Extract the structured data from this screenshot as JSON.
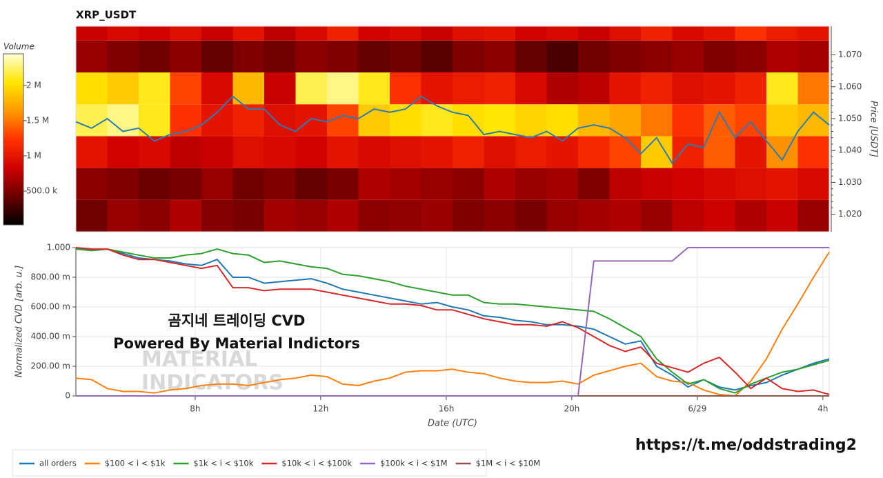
{
  "chart_data": [
    {
      "type": "heatmap",
      "title": "XRP_USDT",
      "xlim": [
        4.2,
        28.2
      ],
      "xbins": [
        4.2,
        5.2,
        6.2,
        7.2,
        8.2,
        9.2,
        10.2,
        11.2,
        12.2,
        13.2,
        14.2,
        15.2,
        16.2,
        17.2,
        18.2,
        19.2,
        20.2,
        21.2,
        22.2,
        23.2,
        24.2,
        25.2,
        26.2,
        27.2,
        28.2
      ],
      "ybins": [
        1.0145,
        1.0245,
        1.0345,
        1.0445,
        1.0545,
        1.0645,
        1.0745,
        1.079
      ],
      "z": [
        [
          450000,
          600000,
          550000,
          700000,
          520000,
          480000,
          650000,
          600000,
          700000,
          550000,
          580000,
          620000,
          500000,
          550000,
          480000,
          600000,
          650000,
          700000,
          600000,
          750000,
          820000,
          700000,
          800000,
          600000
        ],
        [
          550000,
          500000,
          420000,
          480000,
          600000,
          450000,
          500000,
          400000,
          480000,
          700000,
          650000,
          600000,
          550000,
          700000,
          600000,
          650000,
          500000,
          750000,
          800000,
          850000,
          900000,
          950000,
          1000000,
          900000
        ],
        [
          1000000,
          850000,
          900000,
          750000,
          800000,
          950000,
          900000,
          850000,
          1000000,
          900000,
          950000,
          1000000,
          1100000,
          950000,
          1050000,
          1000000,
          1150000,
          1300000,
          1900000,
          1100000,
          1400000,
          1000000,
          1600000,
          1200000
        ],
        [
          2200000,
          2300000,
          2100000,
          1200000,
          1000000,
          1100000,
          950000,
          1000000,
          1300000,
          1900000,
          2000000,
          2100000,
          2000000,
          2050000,
          1950000,
          2000000,
          1800000,
          1700000,
          1500000,
          1200000,
          1400000,
          1300000,
          1900000,
          1800000
        ],
        [
          2000000,
          1900000,
          2100000,
          1300000,
          900000,
          1800000,
          800000,
          2200000,
          2300000,
          2100000,
          1200000,
          1000000,
          1050000,
          1100000,
          900000,
          700000,
          750000,
          1000000,
          1100000,
          950000,
          1000000,
          1100000,
          2100000,
          1500000
        ],
        [
          600000,
          500000,
          450000,
          550000,
          400000,
          500000,
          450000,
          550000,
          500000,
          400000,
          450000,
          350000,
          500000,
          550000,
          400000,
          300000,
          450000,
          500000,
          550000,
          600000,
          500000,
          550000,
          700000,
          650000
        ],
        [
          800000,
          900000,
          850000,
          950000,
          800000,
          1000000,
          750000,
          900000,
          1100000,
          850000,
          900000,
          800000,
          950000,
          1000000,
          850000,
          900000,
          800000,
          950000,
          1100000,
          900000,
          1000000,
          1200000,
          1050000,
          1000000
        ]
      ],
      "colorbar": {
        "title": "Volume",
        "lim": [
          20000,
          2450000
        ],
        "ticks": [
          {
            "value": 500000,
            "label": "500.0 k"
          },
          {
            "value": 1000000,
            "label": "1 M"
          },
          {
            "value": 1500000,
            "label": "1.5 M"
          },
          {
            "value": 2000000,
            "label": "2 M"
          }
        ],
        "colorscale": [
          "#000000",
          "#6b0000",
          "#cf0000",
          "#ff3300",
          "#ff9a00",
          "#ffe600",
          "#ffffd4"
        ]
      },
      "ylabel": "Price [USDT]",
      "yaxis_side": "right",
      "ylim": [
        1.0145,
        1.079
      ],
      "yticks": [
        {
          "value": 1.02,
          "label": "1.020"
        },
        {
          "value": 1.03,
          "label": "1.030"
        },
        {
          "value": 1.04,
          "label": "1.040"
        },
        {
          "value": 1.05,
          "label": "1.050"
        },
        {
          "value": 1.06,
          "label": "1.060"
        },
        {
          "value": 1.07,
          "label": "1.070"
        }
      ],
      "line": {
        "color": "#2e7bb0",
        "x": [
          4.2,
          4.7,
          5.2,
          5.7,
          6.2,
          6.7,
          7.2,
          7.7,
          8.2,
          8.7,
          9.2,
          9.7,
          10.2,
          10.7,
          11.2,
          11.7,
          12.2,
          12.7,
          13.2,
          13.7,
          14.2,
          14.7,
          15.2,
          15.7,
          16.2,
          16.7,
          17.2,
          17.7,
          18.2,
          18.7,
          19.2,
          19.7,
          20.2,
          20.7,
          21.2,
          21.7,
          22.2,
          22.7,
          23.2,
          23.7,
          24.2,
          24.7,
          25.2,
          25.7,
          26.2,
          26.7,
          27.2,
          27.7,
          28.2
        ],
        "values": [
          1.049,
          1.047,
          1.05,
          1.046,
          1.047,
          1.043,
          1.045,
          1.046,
          1.048,
          1.052,
          1.057,
          1.053,
          1.053,
          1.048,
          1.046,
          1.05,
          1.049,
          1.051,
          1.05,
          1.053,
          1.052,
          1.053,
          1.057,
          1.054,
          1.052,
          1.051,
          1.045,
          1.046,
          1.045,
          1.044,
          1.046,
          1.043,
          1.047,
          1.048,
          1.047,
          1.044,
          1.039,
          1.044,
          1.036,
          1.042,
          1.041,
          1.052,
          1.044,
          1.049,
          1.043,
          1.037,
          1.046,
          1.052,
          1.048
        ]
      }
    },
    {
      "type": "line",
      "xlabel": "Date (UTC)",
      "ylabel": "Normalized CVD [arb. u.]",
      "grid": true,
      "xlim": [
        4.2,
        28.2
      ],
      "xticks": [
        {
          "value": 8,
          "label": "8h"
        },
        {
          "value": 12,
          "label": "12h"
        },
        {
          "value": 16,
          "label": "16h"
        },
        {
          "value": 20,
          "label": "20h"
        },
        {
          "value": 24,
          "label": "6/29"
        },
        {
          "value": 28,
          "label": "4h"
        }
      ],
      "ylim": [
        0,
        1
      ],
      "yticks": [
        0,
        {
          "value": 0.2,
          "label": "200.00 m"
        },
        {
          "value": 0.4,
          "label": "400.00 m"
        },
        {
          "value": 0.6,
          "label": "600.00 m"
        },
        {
          "value": 0.8,
          "label": "800.00 m"
        },
        {
          "value": 1,
          "label": "1.000"
        }
      ],
      "x": [
        4.2,
        4.7,
        5.2,
        5.7,
        6.2,
        6.7,
        7.2,
        7.7,
        8.2,
        8.7,
        9.2,
        9.7,
        10.2,
        10.7,
        11.2,
        11.7,
        12.2,
        12.7,
        13.2,
        13.7,
        14.2,
        14.7,
        15.2,
        15.7,
        16.2,
        16.7,
        17.2,
        17.7,
        18.2,
        18.7,
        19.2,
        19.7,
        20.2,
        20.7,
        21.2,
        21.7,
        22.2,
        22.7,
        23.2,
        23.7,
        24.2,
        24.7,
        25.2,
        25.7,
        26.2,
        26.7,
        27.2,
        27.7,
        28.2
      ],
      "series": [
        {
          "name": "all orders",
          "color": "#1f77b4",
          "values": [
            1.0,
            0.98,
            0.99,
            0.96,
            0.93,
            0.92,
            0.91,
            0.89,
            0.88,
            0.92,
            0.8,
            0.8,
            0.76,
            0.77,
            0.78,
            0.79,
            0.76,
            0.72,
            0.7,
            0.68,
            0.66,
            0.64,
            0.62,
            0.63,
            0.6,
            0.58,
            0.54,
            0.53,
            0.51,
            0.5,
            0.48,
            0.48,
            0.47,
            0.45,
            0.4,
            0.35,
            0.37,
            0.2,
            0.14,
            0.06,
            0.11,
            0.06,
            0.04,
            0.07,
            0.09,
            0.14,
            0.18,
            0.22,
            0.25
          ]
        },
        {
          "name": "$100 < i < $1k",
          "color": "#ff7f0e",
          "values": [
            0.12,
            0.11,
            0.05,
            0.03,
            0.03,
            0.02,
            0.04,
            0.05,
            0.07,
            0.08,
            0.08,
            0.07,
            0.09,
            0.11,
            0.12,
            0.14,
            0.13,
            0.08,
            0.07,
            0.1,
            0.12,
            0.16,
            0.17,
            0.17,
            0.18,
            0.16,
            0.15,
            0.12,
            0.1,
            0.09,
            0.09,
            0.1,
            0.08,
            0.14,
            0.17,
            0.2,
            0.22,
            0.13,
            0.1,
            0.09,
            0.04,
            0.01,
            0,
            0.1,
            0.25,
            0.45,
            0.62,
            0.8,
            0.97
          ]
        },
        {
          "name": "$1k < i < $10k",
          "color": "#2ca02c",
          "values": [
            0.99,
            0.98,
            0.99,
            0.97,
            0.95,
            0.93,
            0.93,
            0.95,
            0.96,
            0.99,
            0.96,
            0.95,
            0.9,
            0.91,
            0.89,
            0.87,
            0.86,
            0.82,
            0.81,
            0.79,
            0.77,
            0.74,
            0.72,
            0.7,
            0.68,
            0.68,
            0.63,
            0.62,
            0.62,
            0.61,
            0.6,
            0.59,
            0.58,
            0.57,
            0.52,
            0.46,
            0.4,
            0.25,
            0.16,
            0.08,
            0.11,
            0.05,
            0.02,
            0.08,
            0.12,
            0.16,
            0.18,
            0.21,
            0.24
          ]
        },
        {
          "name": "$10k < i < $100k",
          "color": "#d62728",
          "values": [
            1.0,
            0.99,
            0.99,
            0.95,
            0.92,
            0.92,
            0.9,
            0.88,
            0.86,
            0.88,
            0.73,
            0.73,
            0.71,
            0.72,
            0.72,
            0.72,
            0.7,
            0.68,
            0.66,
            0.64,
            0.62,
            0.62,
            0.61,
            0.58,
            0.58,
            0.55,
            0.52,
            0.5,
            0.48,
            0.48,
            0.47,
            0.5,
            0.46,
            0.4,
            0.34,
            0.3,
            0.33,
            0.22,
            0.19,
            0.16,
            0.22,
            0.26,
            0.16,
            0.05,
            0.12,
            0.05,
            0.03,
            0.04,
            0.01
          ]
        },
        {
          "name": "$1M < i < $10M",
          "color": "#8c564b",
          "values": [
            0,
            0,
            0,
            0,
            0,
            0,
            0,
            0,
            0,
            0,
            0,
            0,
            0,
            0,
            0,
            0,
            0,
            0,
            0,
            0,
            0,
            0,
            0,
            0,
            0,
            0,
            0,
            0,
            0,
            0,
            0,
            0,
            0,
            0,
            0,
            0,
            0,
            0,
            0,
            0,
            0,
            0,
            0,
            0,
            0,
            0,
            0,
            0,
            0
          ]
        },
        {
          "name": "$100k < i < $1M",
          "color": "#9467bd",
          "values": [
            0,
            0,
            0,
            0,
            0,
            0,
            0,
            0,
            0,
            0,
            0,
            0,
            0,
            0,
            0,
            0,
            0,
            0,
            0,
            0,
            0,
            0,
            0,
            0,
            0,
            0,
            0,
            0,
            0,
            0,
            0,
            0,
            0,
            0.91,
            0.91,
            0.91,
            0.91,
            0.91,
            0.91,
            1,
            1,
            1,
            1,
            1,
            1,
            1,
            1,
            1,
            1
          ]
        }
      ],
      "legend_order": [
        0,
        1,
        2,
        3,
        5,
        4
      ],
      "annotations": [
        "곰지네 트레이딩 CVD",
        "Powered By Material Indictors"
      ],
      "watermark": [
        "MATERIAL",
        "INDICATORS"
      ]
    }
  ],
  "footer_link": "https://t.me/oddstrading2"
}
